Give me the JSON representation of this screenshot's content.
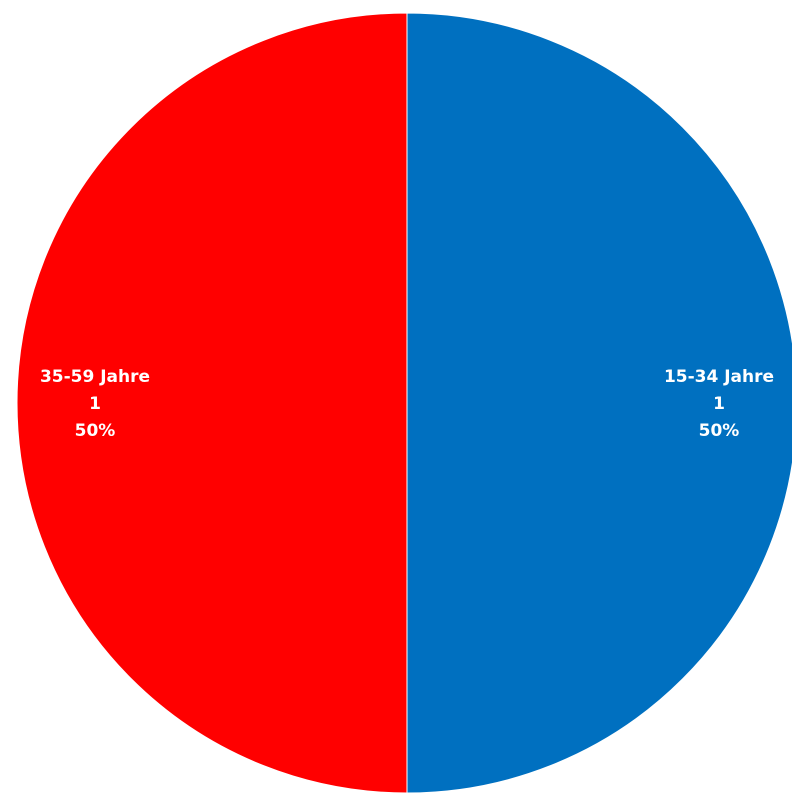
{
  "chart_data": {
    "type": "pie",
    "start_angle_deg": 0,
    "direction": "clockwise",
    "slices": [
      {
        "label": "15-34 Jahre",
        "value": 1,
        "percent": "50%",
        "color": "#0070C0"
      },
      {
        "label": "35-59 Jahre",
        "value": 1,
        "percent": "50%",
        "color": "#FF0000"
      }
    ],
    "data_labels": {
      "show_category": true,
      "show_value": true,
      "show_percent": true,
      "color": "#FFFFFF"
    },
    "legend": "none"
  }
}
